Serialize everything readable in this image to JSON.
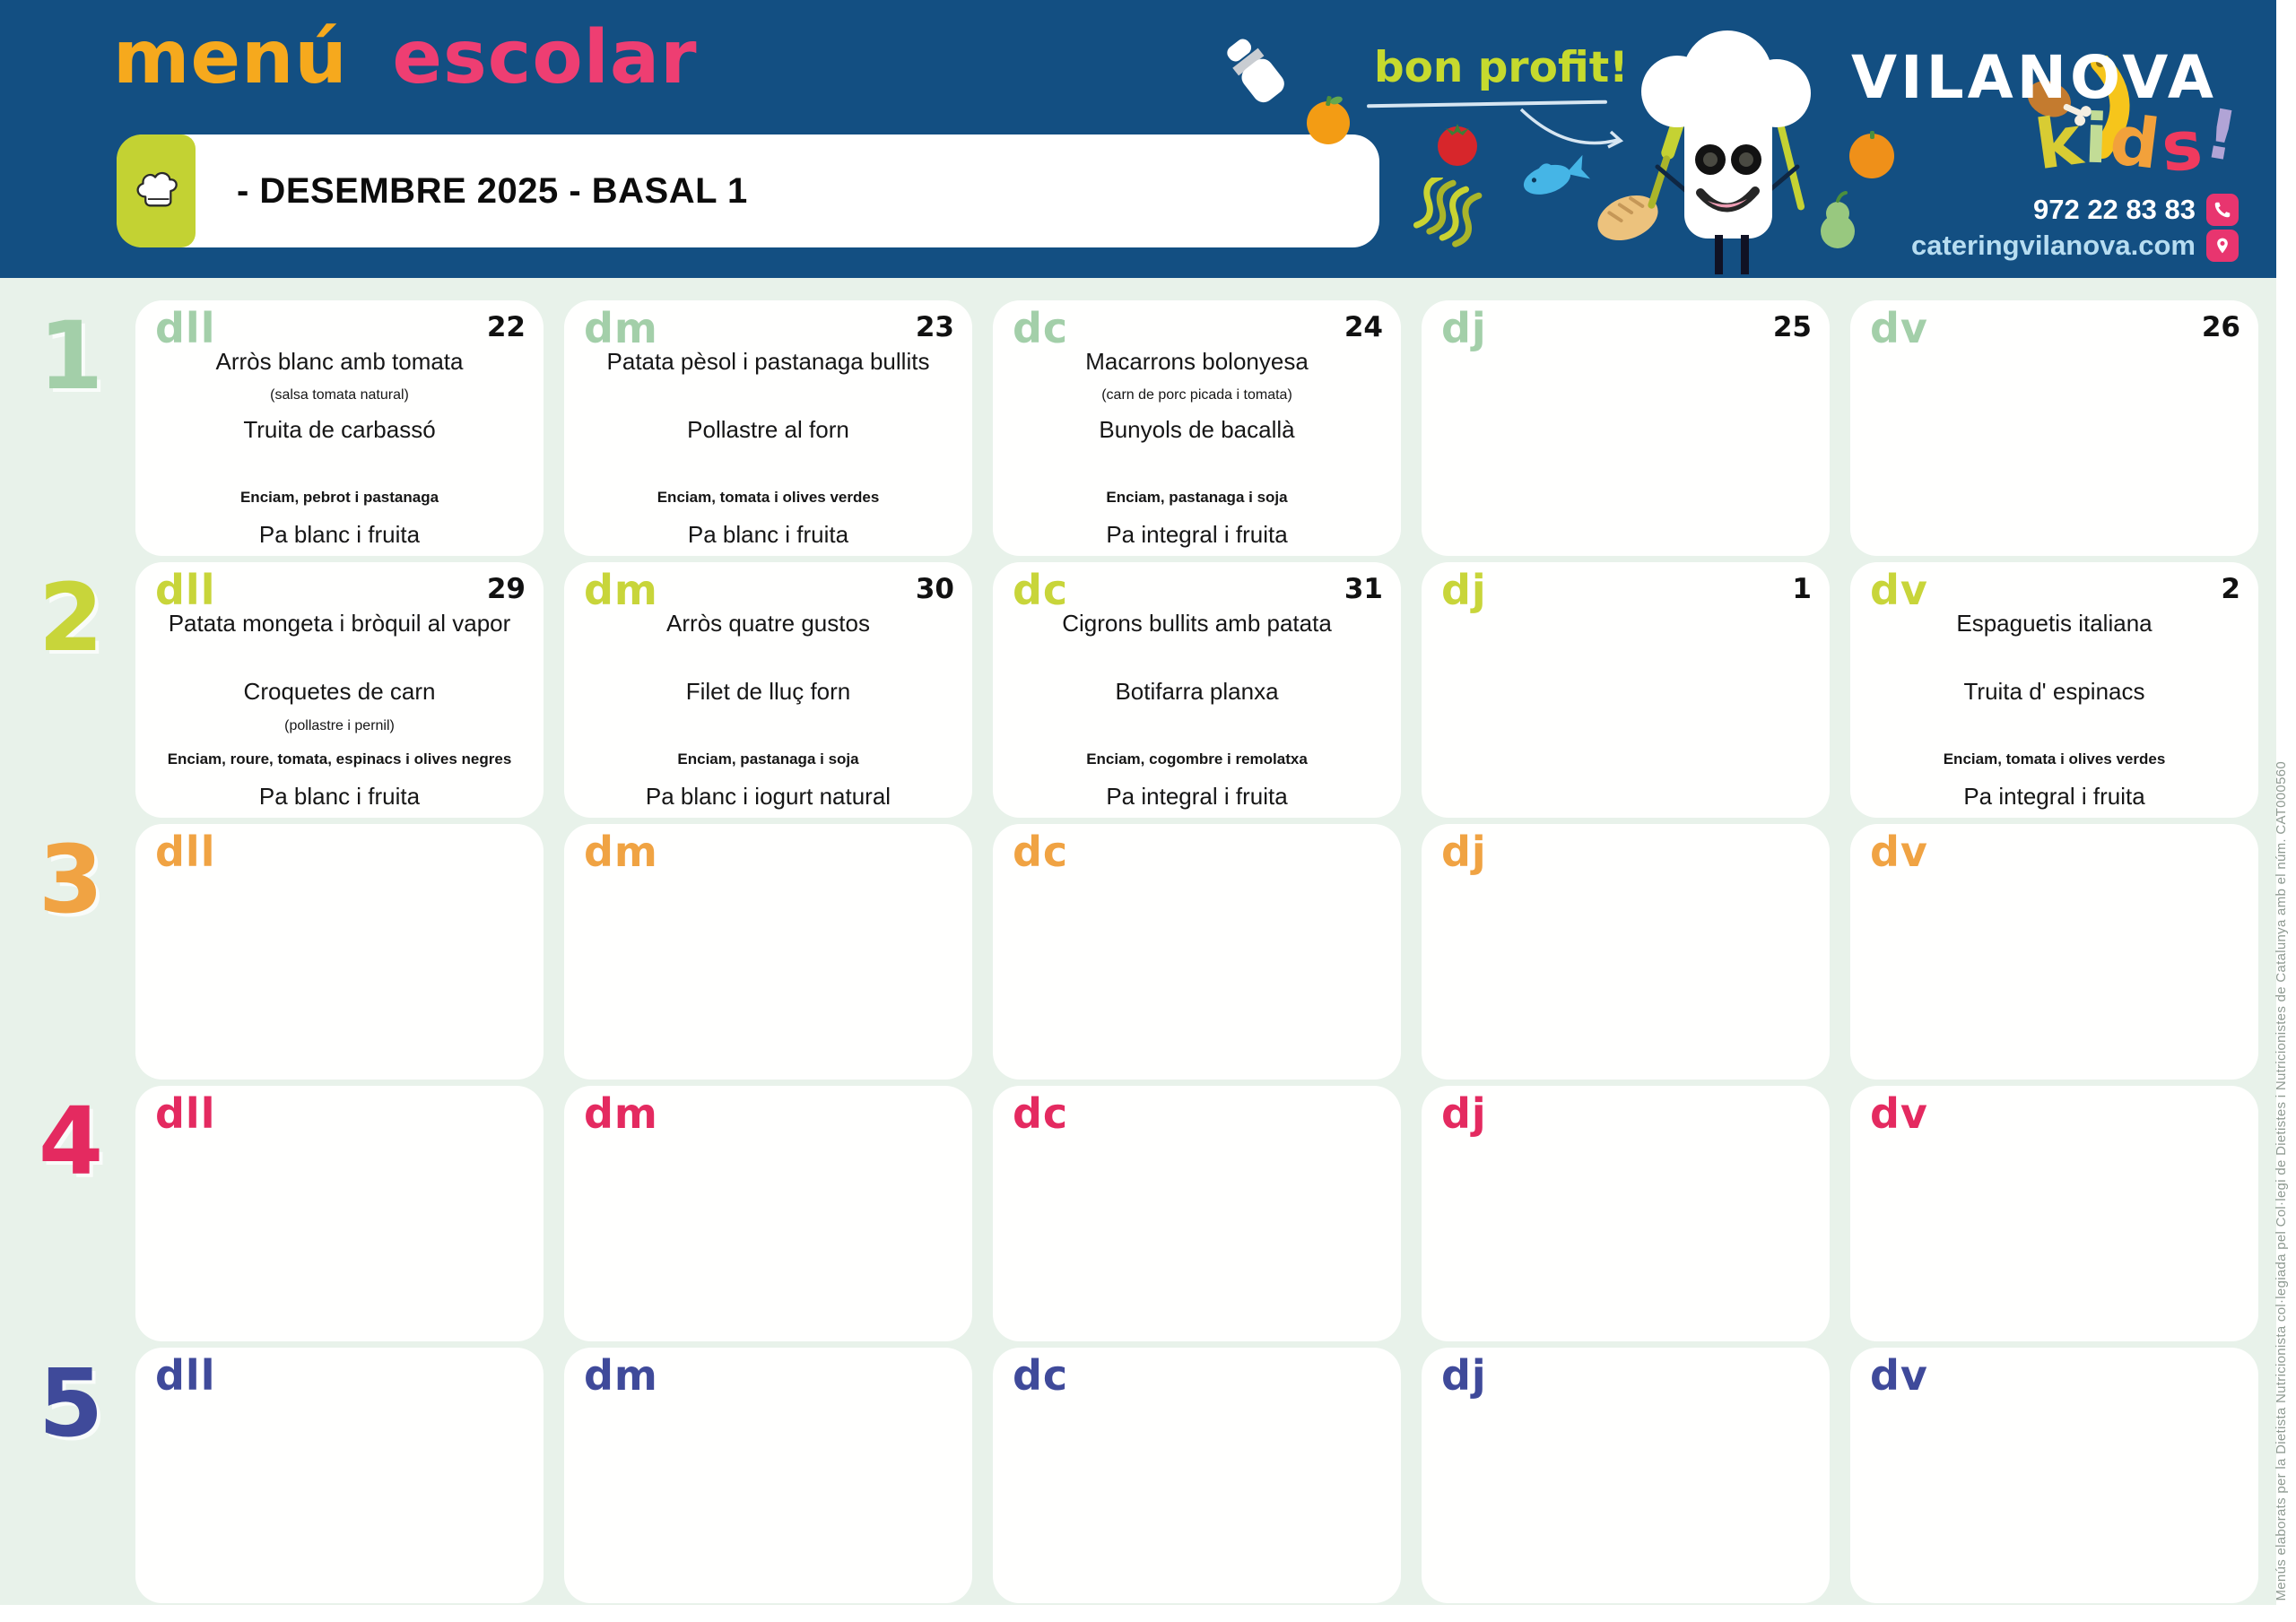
{
  "header": {
    "logo_menu": "menú",
    "logo_escolar": "escolar",
    "tagline": "bon profit!",
    "title": "- DESEMBRE 2025 - BASAL 1",
    "brand_name": "VILANOVA",
    "kids_letters": [
      {
        "ch": "k",
        "color": "#d8cc33"
      },
      {
        "ch": "i",
        "color": "#c2dc96"
      },
      {
        "ch": "d",
        "color": "#f2a13b"
      },
      {
        "ch": "s",
        "color": "#f03a5e"
      },
      {
        "ch": "!",
        "color": "#b1a4d6"
      }
    ],
    "phone": "972 22 83 83",
    "website": "cateringvilanova.com",
    "decor_icons": [
      "salt-shaker",
      "orange",
      "tomato",
      "fish",
      "fusilli",
      "bread",
      "chef-character",
      "pear",
      "orange-2",
      "drumstick",
      "banana",
      "chef-hat-badge",
      "phone-icon",
      "location-pin-icon"
    ]
  },
  "colors": {
    "header_bg": "#134f82",
    "calendar_bg": "#e8f2ea",
    "logo_menu": "#f6a91d",
    "logo_escolar": "#ee3e72",
    "tagline": "#c6da2e",
    "hat_badge": "#c3d233",
    "contact_icon": "#e8356f",
    "website_text": "#b7ddf1"
  },
  "sidebar_note": "Menús elaborats per la Dietista Nutricionista col·legiada pel Col·legi de Dietistes i Nutricionistes de Catalunya amb el núm. CAT000560",
  "calendar": {
    "day_labels_legend": [
      "dll",
      "dm",
      "dc",
      "dj",
      "dv"
    ],
    "weeks": [
      {
        "number": "1",
        "color": "#a3cfa9",
        "days": [
          {
            "label": "dll",
            "date": "22",
            "dish1": "Arròs blanc amb tomata",
            "note1": "(salsa tomata natural)",
            "dish2": "Truita de carbassó",
            "note2": "",
            "salad": "Enciam, pebrot i pastanaga",
            "bread": "Pa blanc i fruita"
          },
          {
            "label": "dm",
            "date": "23",
            "dish1": "Patata pèsol i pastanaga bullits",
            "note1": "",
            "dish2": "Pollastre al forn",
            "note2": "",
            "salad": "Enciam, tomata i olives verdes",
            "bread": "Pa blanc i fruita"
          },
          {
            "label": "dc",
            "date": "24",
            "dish1": "Macarrons bolonyesa",
            "note1": "(carn de porc picada i tomata)",
            "dish2": "Bunyols de bacallà",
            "note2": "",
            "salad": "Enciam, pastanaga i soja",
            "bread": "Pa integral i fruita"
          },
          {
            "label": "dj",
            "date": "25",
            "dish1": "",
            "note1": "",
            "dish2": "",
            "note2": "",
            "salad": "",
            "bread": ""
          },
          {
            "label": "dv",
            "date": "26",
            "dish1": "",
            "note1": "",
            "dish2": "",
            "note2": "",
            "salad": "",
            "bread": ""
          }
        ]
      },
      {
        "number": "2",
        "color": "#c8d53a",
        "days": [
          {
            "label": "dll",
            "date": "29",
            "dish1": "Patata mongeta i bròquil al vapor",
            "note1": "",
            "dish2": "Croquetes de carn",
            "note2": "(pollastre i pernil)",
            "salad": "Enciam, roure, tomata, espinacs i olives negres",
            "bread": "Pa blanc i fruita"
          },
          {
            "label": "dm",
            "date": "30",
            "dish1": "Arròs quatre gustos",
            "note1": "",
            "dish2": "Filet de lluç forn",
            "note2": "",
            "salad": "Enciam, pastanaga i soja",
            "bread": "Pa blanc i iogurt natural"
          },
          {
            "label": "dc",
            "date": "31",
            "dish1": "Cigrons bullits amb patata",
            "note1": "",
            "dish2": "Botifarra planxa",
            "note2": "",
            "salad": "Enciam, cogombre i remolatxa",
            "bread": "Pa integral i fruita"
          },
          {
            "label": "dj",
            "date": "1",
            "dish1": "",
            "note1": "",
            "dish2": "",
            "note2": "",
            "salad": "",
            "bread": ""
          },
          {
            "label": "dv",
            "date": "2",
            "dish1": "Espaguetis italiana",
            "note1": "",
            "dish2": "Truita d' espinacs",
            "note2": "",
            "salad": "Enciam, tomata i olives verdes",
            "bread": "Pa integral i fruita"
          }
        ]
      },
      {
        "number": "3",
        "color": "#f0a343",
        "days": [
          {
            "label": "dll",
            "date": "",
            "dish1": "",
            "note1": "",
            "dish2": "",
            "note2": "",
            "salad": "",
            "bread": ""
          },
          {
            "label": "dm",
            "date": "",
            "dish1": "",
            "note1": "",
            "dish2": "",
            "note2": "",
            "salad": "",
            "bread": ""
          },
          {
            "label": "dc",
            "date": "",
            "dish1": "",
            "note1": "",
            "dish2": "",
            "note2": "",
            "salad": "",
            "bread": ""
          },
          {
            "label": "dj",
            "date": "",
            "dish1": "",
            "note1": "",
            "dish2": "",
            "note2": "",
            "salad": "",
            "bread": ""
          },
          {
            "label": "dv",
            "date": "",
            "dish1": "",
            "note1": "",
            "dish2": "",
            "note2": "",
            "salad": "",
            "bread": ""
          }
        ]
      },
      {
        "number": "4",
        "color": "#e42a60",
        "days": [
          {
            "label": "dll",
            "date": "",
            "dish1": "",
            "note1": "",
            "dish2": "",
            "note2": "",
            "salad": "",
            "bread": ""
          },
          {
            "label": "dm",
            "date": "",
            "dish1": "",
            "note1": "",
            "dish2": "",
            "note2": "",
            "salad": "",
            "bread": ""
          },
          {
            "label": "dc",
            "date": "",
            "dish1": "",
            "note1": "",
            "dish2": "",
            "note2": "",
            "salad": "",
            "bread": ""
          },
          {
            "label": "dj",
            "date": "",
            "dish1": "",
            "note1": "",
            "dish2": "",
            "note2": "",
            "salad": "",
            "bread": ""
          },
          {
            "label": "dv",
            "date": "",
            "dish1": "",
            "note1": "",
            "dish2": "",
            "note2": "",
            "salad": "",
            "bread": ""
          }
        ]
      },
      {
        "number": "5",
        "color": "#3f4a9a",
        "days": [
          {
            "label": "dll",
            "date": "",
            "dish1": "",
            "note1": "",
            "dish2": "",
            "note2": "",
            "salad": "",
            "bread": ""
          },
          {
            "label": "dm",
            "date": "",
            "dish1": "",
            "note1": "",
            "dish2": "",
            "note2": "",
            "salad": "",
            "bread": ""
          },
          {
            "label": "dc",
            "date": "",
            "dish1": "",
            "note1": "",
            "dish2": "",
            "note2": "",
            "salad": "",
            "bread": ""
          },
          {
            "label": "dj",
            "date": "",
            "dish1": "",
            "note1": "",
            "dish2": "",
            "note2": "",
            "salad": "",
            "bread": ""
          },
          {
            "label": "dv",
            "date": "",
            "dish1": "",
            "note1": "",
            "dish2": "",
            "note2": "",
            "salad": "",
            "bread": ""
          }
        ]
      }
    ]
  }
}
